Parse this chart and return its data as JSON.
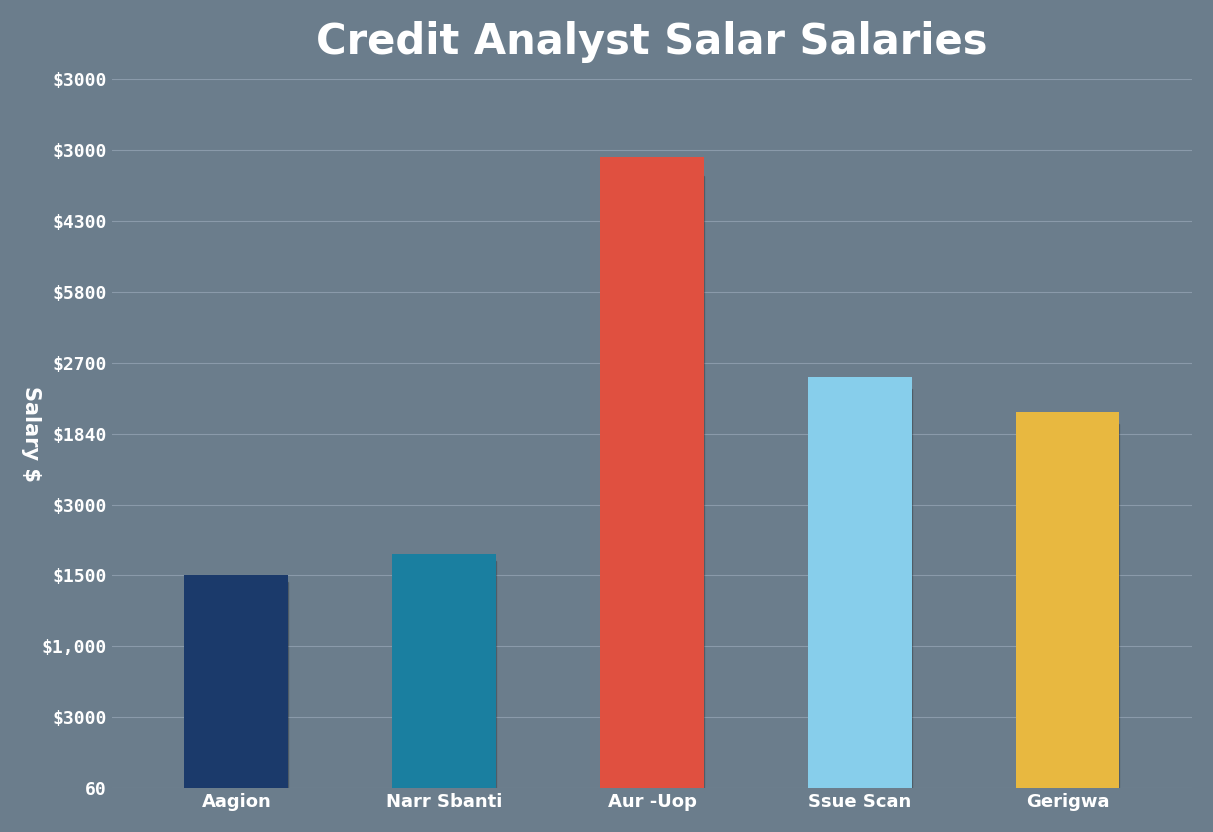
{
  "title": "Credit Analyst Salar Salaries",
  "ylabel": "Salary $",
  "categories": [
    "Aagion",
    "Narr Sbanti",
    "Aur -Uop",
    "Ssue Scan",
    "Gerigwa"
  ],
  "bar_colors": [
    "#1b3a6b",
    "#1a7fa0",
    "#e05040",
    "#87ceeb",
    "#e8b840"
  ],
  "background_color": "#6b7d8c",
  "title_fontsize": 30,
  "label_fontsize": 13,
  "tick_fontsize": 13,
  "bar_width": 0.5,
  "text_color": "#ffffff",
  "grid_color": "#8a9aaa",
  "grid_linewidth": 0.8,
  "ytick_labels": [
    "60",
    "$3000",
    "$1,000",
    "$1500",
    "$3000",
    "$1840",
    "$2700",
    "$5800",
    "$4300",
    "$3000",
    "$3000"
  ],
  "ytick_positions": [
    0,
    1,
    2,
    3,
    4,
    5,
    6,
    7,
    8,
    9,
    10
  ],
  "ylim": [
    0,
    10
  ],
  "values": [
    3.0,
    3.3,
    8.9,
    5.8,
    5.3
  ],
  "xlim": [
    -0.6,
    4.6
  ]
}
